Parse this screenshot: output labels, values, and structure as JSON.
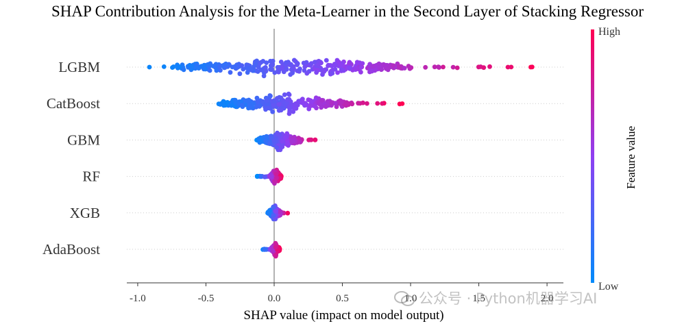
{
  "chart_data": {
    "type": "scatter",
    "subtype": "shap-beeswarm",
    "title": "SHAP Contribution Analysis for the Meta-Learner in the Second Layer of Stacking Regressor",
    "xlabel": "SHAP value (impact on model output)",
    "ylabel": "",
    "xlim": [
      -1.08,
      2.12
    ],
    "xticks": [
      "-1.0",
      "-0.5",
      "0.0",
      "0.5",
      "1.0",
      "1.5",
      "2.0"
    ],
    "xtick_values": [
      -1.0,
      -0.5,
      0.0,
      0.5,
      1.0,
      1.5,
      2.0
    ],
    "features": [
      {
        "name": "LGBM",
        "min": -0.93,
        "max": 1.98,
        "core_min": -0.7,
        "core_max": 0.95,
        "n": 340,
        "spread": 1.0
      },
      {
        "name": "CatBoost",
        "min": -0.43,
        "max": 0.94,
        "core_min": -0.38,
        "core_max": 0.55,
        "n": 300,
        "spread": 0.95
      },
      {
        "name": "GBM",
        "min": -0.14,
        "max": 0.33,
        "core_min": -0.12,
        "core_max": 0.2,
        "n": 230,
        "spread": 0.8
      },
      {
        "name": "RF",
        "min": -0.13,
        "max": 0.06,
        "core_min": -0.03,
        "core_max": 0.05,
        "n": 200,
        "spread": 0.75
      },
      {
        "name": "XGB",
        "min": -0.05,
        "max": 0.1,
        "core_min": -0.04,
        "core_max": 0.05,
        "n": 200,
        "spread": 0.7
      },
      {
        "name": "AdaBoost",
        "min": -0.09,
        "max": 0.04,
        "core_min": -0.02,
        "core_max": 0.04,
        "n": 190,
        "spread": 0.65
      }
    ],
    "colorbar": {
      "label": "Feature value",
      "high": "High",
      "low": "Low",
      "high_color": "#ff0052",
      "low_color": "#008bfb"
    },
    "grid": false
  },
  "watermark": {
    "text": "公众号 · Python机器学习AI"
  }
}
